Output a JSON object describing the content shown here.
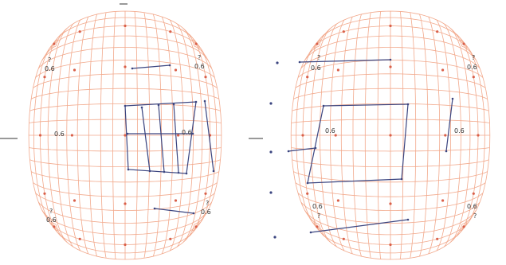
{
  "colors": {
    "grid": "#f2a98c",
    "marker": "#d9604a",
    "shape": "#3b4580"
  },
  "panels": [
    {
      "name": "left-panel",
      "labels": [
        "?",
        "0.6",
        "?",
        "0.6",
        "0.6",
        "0.6",
        "?",
        "0.6",
        "?",
        "0.6"
      ]
    },
    {
      "name": "right-panel",
      "labels": [
        "?",
        "0.6",
        "?",
        "0.6",
        "0.6",
        "0.6",
        "0.6",
        "?",
        "0.6",
        "?"
      ]
    }
  ]
}
